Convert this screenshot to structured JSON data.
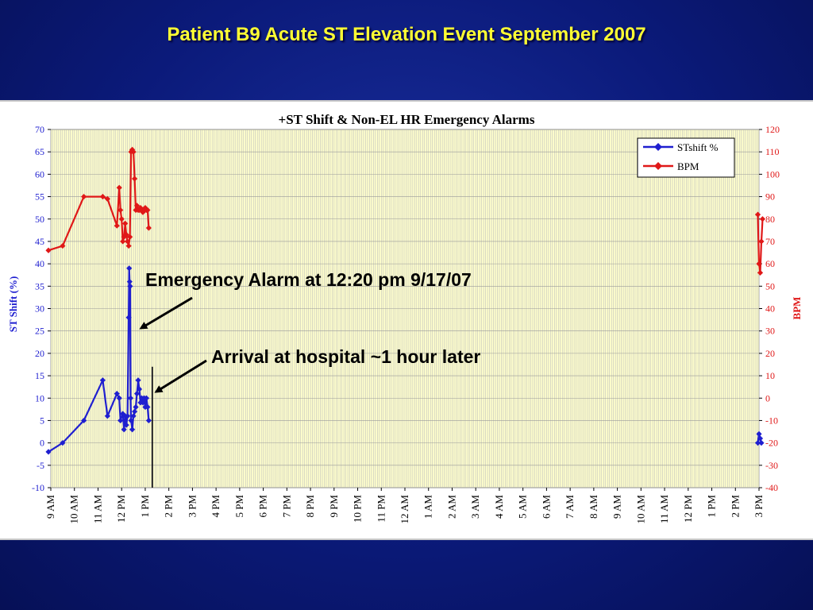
{
  "slide": {
    "title": "Patient B9 Acute ST Elevation Event September 2007"
  },
  "annotations": {
    "emergency": "Emergency Alarm at 12:20 pm 9/17/07",
    "arrival": "Arrival at hospital ~1 hour later"
  },
  "colors": {
    "st_series": "#1f1fd0",
    "bpm_series": "#e01818",
    "plot_bg": "#ffffcc",
    "grid": "#bdbdbd"
  },
  "chart_data": {
    "type": "line",
    "title": "+ST Shift & Non-EL HR Emergency Alarms",
    "ylabel": "ST Shift (%)",
    "y2label": "BPM",
    "ylim": [
      -10,
      70
    ],
    "y_ticks": [
      -10,
      -5,
      0,
      5,
      10,
      15,
      20,
      25,
      30,
      35,
      40,
      45,
      50,
      55,
      60,
      65,
      70
    ],
    "y2lim": [
      -40,
      120
    ],
    "y2_ticks": [
      -40,
      -30,
      -20,
      -10,
      0,
      10,
      20,
      30,
      40,
      50,
      60,
      70,
      80,
      90,
      100,
      110,
      120
    ],
    "x_unit": "hours after 9 AM",
    "xlim": [
      0,
      30
    ],
    "x_ticks": [
      "9 AM",
      "10 AM",
      "11 AM",
      "12 PM",
      "1 PM",
      "2 PM",
      "3 PM",
      "4 PM",
      "5 PM",
      "6 PM",
      "7 PM",
      "8 PM",
      "9 PM",
      "10 PM",
      "11 PM",
      "12 AM",
      "1 AM",
      "2 AM",
      "3 AM",
      "4 AM",
      "5 AM",
      "6 AM",
      "7 AM",
      "8 AM",
      "9 AM",
      "10 AM",
      "11 AM",
      "12 PM",
      "1 PM",
      "2 PM",
      "3 PM"
    ],
    "grid": true,
    "legend_position": "top-right",
    "series": [
      {
        "name": "STshift %",
        "axis": "left",
        "segments": [
          [
            [
              -0.1,
              -2
            ],
            [
              0.5,
              0
            ],
            [
              1.4,
              5
            ],
            [
              2.2,
              14
            ],
            [
              2.4,
              6
            ],
            [
              2.8,
              11
            ],
            [
              2.9,
              10
            ],
            [
              2.95,
              5
            ],
            [
              3.05,
              6.5
            ],
            [
              3.1,
              3
            ],
            [
              3.15,
              6
            ],
            [
              3.2,
              4
            ],
            [
              3.25,
              6
            ],
            [
              3.3,
              28
            ],
            [
              3.32,
              39
            ],
            [
              3.34,
              36
            ],
            [
              3.36,
              35
            ],
            [
              3.38,
              10
            ],
            [
              3.4,
              5
            ],
            [
              3.45,
              3
            ],
            [
              3.5,
              6
            ],
            [
              3.55,
              7
            ],
            [
              3.6,
              8
            ],
            [
              3.65,
              11
            ],
            [
              3.7,
              14
            ],
            [
              3.75,
              12
            ],
            [
              3.8,
              9
            ],
            [
              3.85,
              10
            ],
            [
              3.9,
              9
            ],
            [
              3.95,
              10
            ],
            [
              4.0,
              8
            ],
            [
              4.05,
              10
            ],
            [
              4.1,
              8
            ],
            [
              4.15,
              5
            ]
          ],
          [
            [
              29.95,
              0
            ],
            [
              30.0,
              2
            ],
            [
              30.05,
              1
            ],
            [
              30.1,
              0
            ]
          ]
        ]
      },
      {
        "name": "BPM",
        "axis": "right",
        "segments": [
          [
            [
              -0.1,
              66
            ],
            [
              0.5,
              68
            ],
            [
              1.4,
              90
            ],
            [
              2.2,
              90
            ],
            [
              2.4,
              89
            ],
            [
              2.8,
              77
            ],
            [
              2.9,
              94
            ],
            [
              2.95,
              84
            ],
            [
              3.0,
              80
            ],
            [
              3.05,
              70
            ],
            [
              3.1,
              72
            ],
            [
              3.15,
              78
            ],
            [
              3.2,
              73
            ],
            [
              3.25,
              70
            ],
            [
              3.3,
              68
            ],
            [
              3.35,
              72
            ],
            [
              3.4,
              110
            ],
            [
              3.45,
              111
            ],
            [
              3.5,
              110
            ],
            [
              3.55,
              98
            ],
            [
              3.6,
              84
            ],
            [
              3.65,
              86
            ],
            [
              3.7,
              84
            ],
            [
              3.75,
              84
            ],
            [
              3.8,
              85
            ],
            [
              3.85,
              84
            ],
            [
              3.9,
              83
            ],
            [
              3.95,
              84
            ],
            [
              4.0,
              85
            ],
            [
              4.05,
              84
            ],
            [
              4.1,
              84
            ],
            [
              4.15,
              76
            ]
          ],
          [
            [
              29.95,
              82
            ],
            [
              30.0,
              60
            ],
            [
              30.05,
              56
            ],
            [
              30.1,
              70
            ],
            [
              30.15,
              80
            ]
          ]
        ]
      }
    ],
    "markers": [
      {
        "x": 4.3,
        "y_from": -10,
        "y_to": 17
      }
    ]
  }
}
